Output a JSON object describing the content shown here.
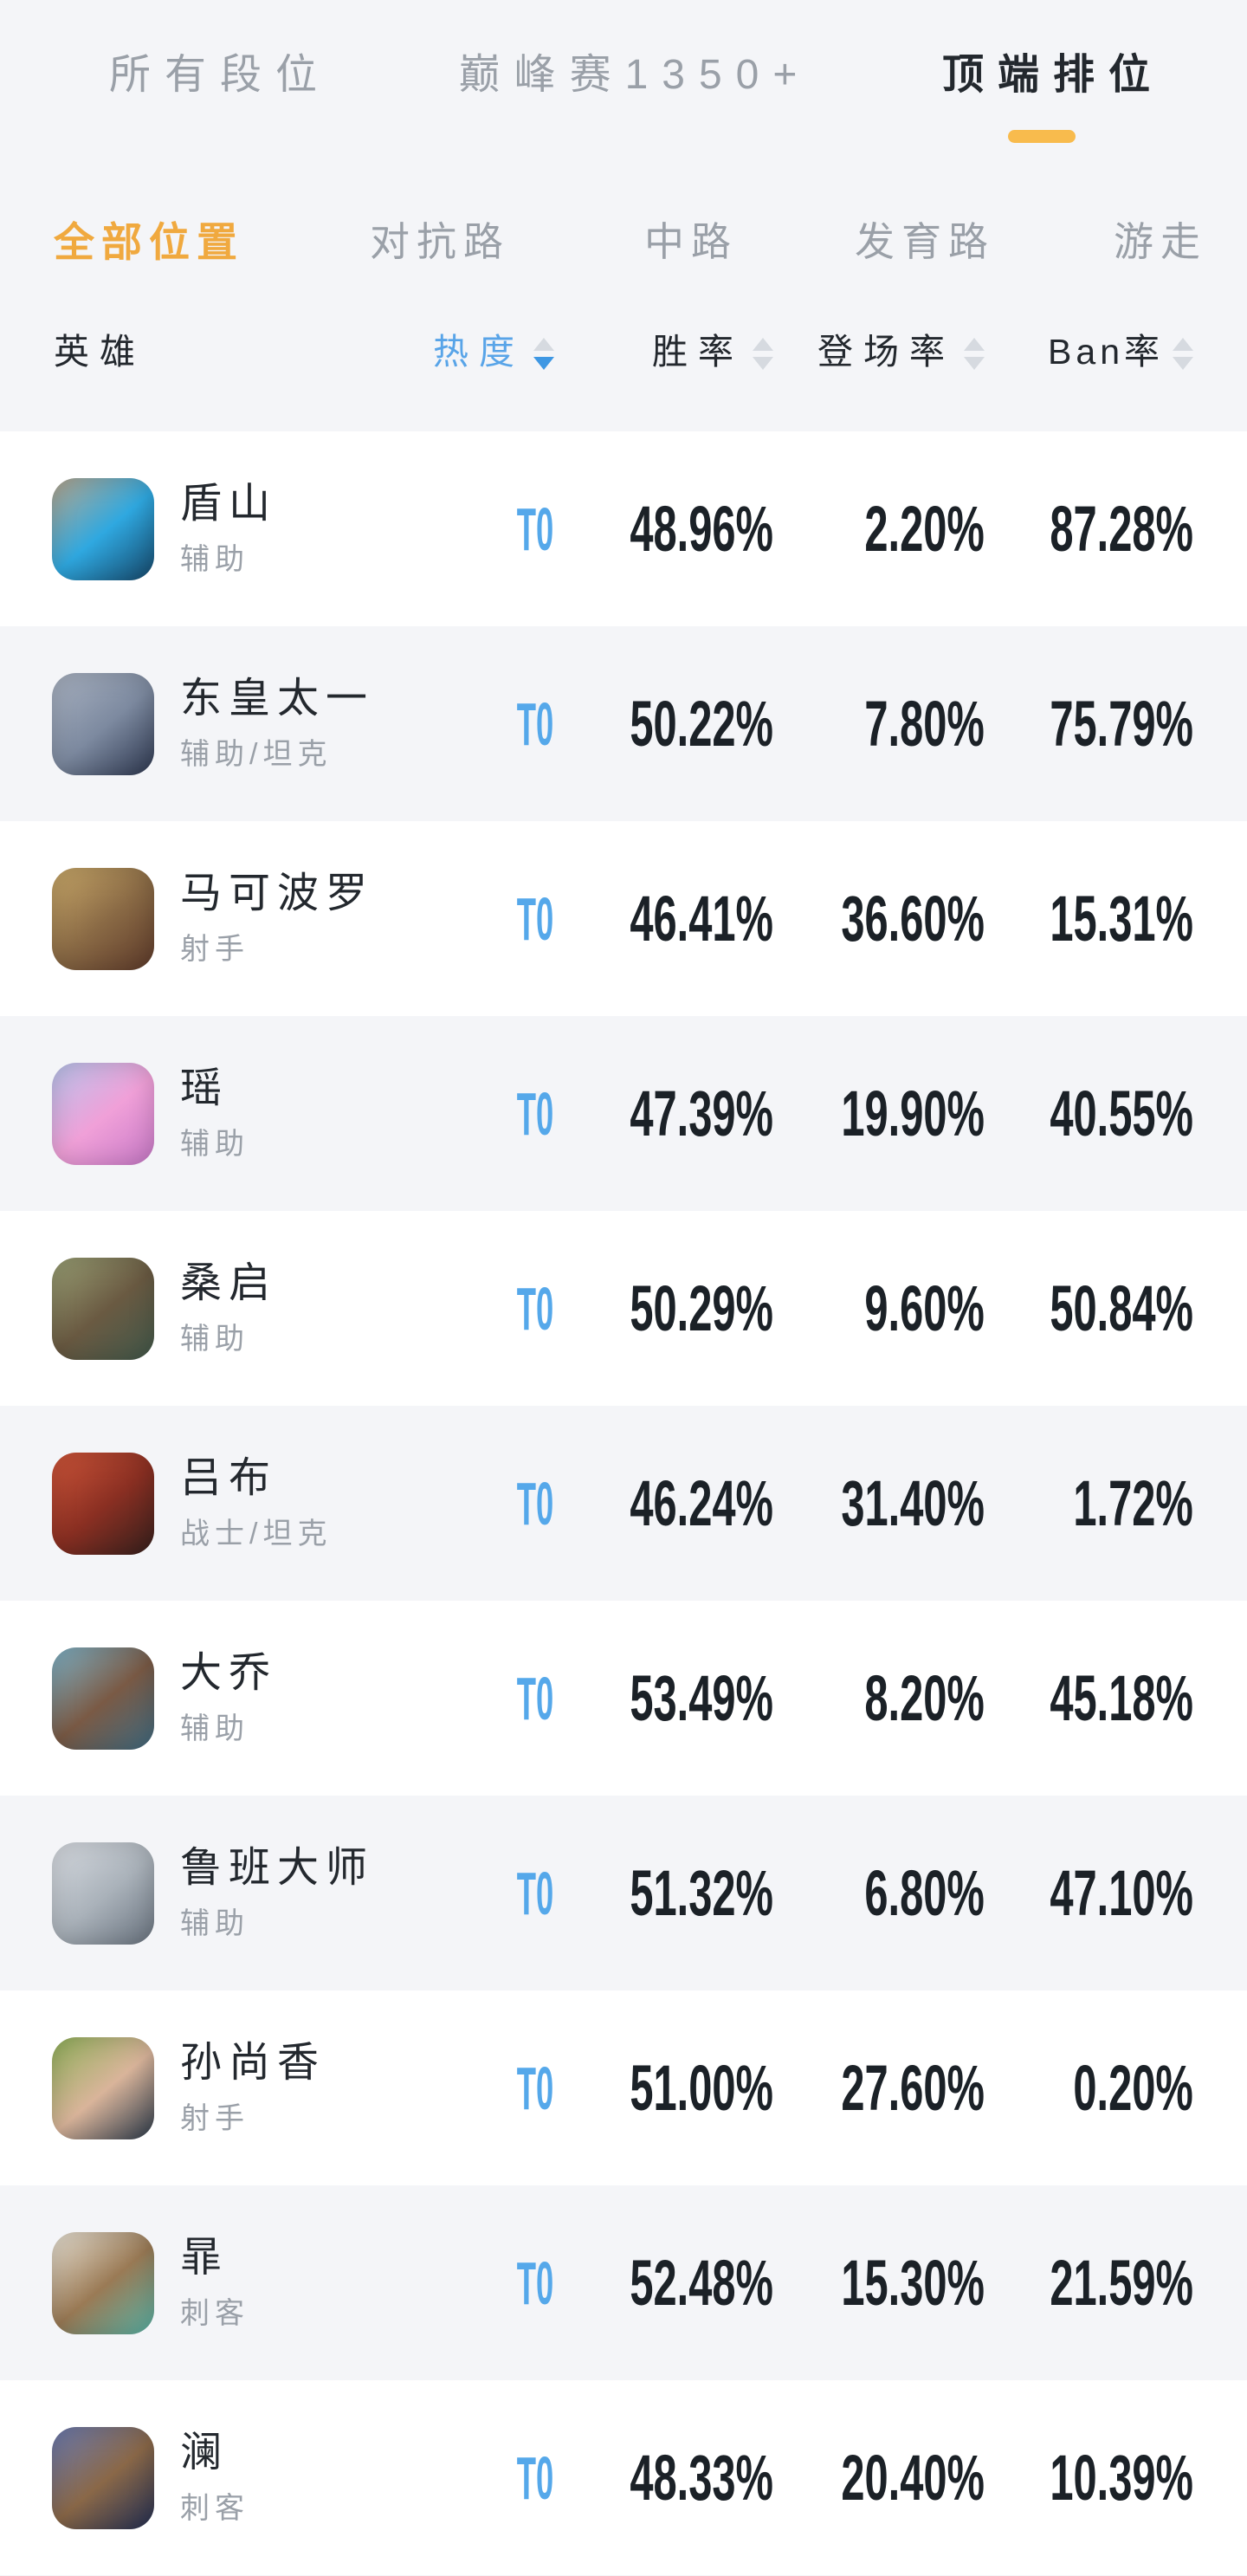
{
  "tabs": [
    {
      "label": "所有段位",
      "active": false
    },
    {
      "label": "巅峰赛1350+",
      "active": false
    },
    {
      "label": "顶端排位",
      "active": true
    }
  ],
  "filters": [
    {
      "label": "全部位置",
      "active": true
    },
    {
      "label": "对抗路",
      "active": false
    },
    {
      "label": "中路",
      "active": false
    },
    {
      "label": "发育路",
      "active": false
    },
    {
      "label": "游走",
      "active": false
    }
  ],
  "table_header": {
    "hero": "英雄",
    "heat": "热度",
    "win_rate": "胜率",
    "pick_rate": "登场率",
    "ban_rate": "Ban率",
    "heat_sort_state": "descending"
  },
  "rows": [
    {
      "name": "盾山",
      "role": "辅助",
      "tier": "T0",
      "win": "48.96%",
      "pick": "2.20%",
      "ban": "87.28%",
      "avatar_colors": [
        "#b9a78d",
        "#2fa8e0",
        "#16486b"
      ]
    },
    {
      "name": "东皇太一",
      "role": "辅助/坦克",
      "tier": "T0",
      "win": "50.22%",
      "pick": "7.80%",
      "ban": "75.79%",
      "avatar_colors": [
        "#aab3c2",
        "#7d8aa0",
        "#2e3850"
      ]
    },
    {
      "name": "马可波罗",
      "role": "射手",
      "tier": "T0",
      "win": "46.41%",
      "pick": "36.60%",
      "ban": "15.31%",
      "avatar_colors": [
        "#c9a96a",
        "#8a6a45",
        "#5d3a2a"
      ]
    },
    {
      "name": "瑶",
      "role": "辅助",
      "tier": "T0",
      "win": "47.39%",
      "pick": "19.90%",
      "ban": "40.55%",
      "avatar_colors": [
        "#b8c4ec",
        "#f0a0d8",
        "#c879c8"
      ]
    },
    {
      "name": "桑启",
      "role": "辅助",
      "tier": "T0",
      "win": "50.29%",
      "pick": "9.60%",
      "ban": "50.84%",
      "avatar_colors": [
        "#9aa075",
        "#6a5a42",
        "#41584a"
      ]
    },
    {
      "name": "吕布",
      "role": "战士/坦克",
      "tier": "T0",
      "win": "46.24%",
      "pick": "31.40%",
      "ban": "1.72%",
      "avatar_colors": [
        "#d0563a",
        "#8a2f22",
        "#35201d"
      ]
    },
    {
      "name": "大乔",
      "role": "辅助",
      "tier": "T0",
      "win": "53.49%",
      "pick": "8.20%",
      "ban": "45.18%",
      "avatar_colors": [
        "#7fb3c8",
        "#7a5a45",
        "#3f6a80"
      ]
    },
    {
      "name": "鲁班大师",
      "role": "辅助",
      "tier": "T0",
      "win": "51.32%",
      "pick": "6.80%",
      "ban": "47.10%",
      "avatar_colors": [
        "#d8dce2",
        "#aab2ba",
        "#6a7480"
      ]
    },
    {
      "name": "孙尚香",
      "role": "射手",
      "tier": "T0",
      "win": "51.00%",
      "pick": "27.60%",
      "ban": "0.20%",
      "avatar_colors": [
        "#8fb059",
        "#d9b49a",
        "#2c3a4a"
      ]
    },
    {
      "name": "暃",
      "role": "刺客",
      "tier": "T0",
      "win": "52.48%",
      "pick": "15.30%",
      "ban": "21.59%",
      "avatar_colors": [
        "#e9e3d6",
        "#9a7a55",
        "#58b2a6"
      ]
    },
    {
      "name": "澜",
      "role": "刺客",
      "tier": "T0",
      "win": "48.33%",
      "pick": "20.40%",
      "ban": "10.39%",
      "avatar_colors": [
        "#6a7ab0",
        "#8a6848",
        "#222e52"
      ]
    }
  ],
  "colors": {
    "accent_orange": "#f0a93f",
    "active_underline": "#f8bb4d",
    "heat_blue": "#58a4e8",
    "sort_active_blue": "#3e97e3",
    "sort_inactive_gray": "#d6dae0",
    "tier_blue": "#55a8ea",
    "value_dark": "#1b2127",
    "text_dark": "#23282e",
    "text_gray": "#9aa0a8",
    "row_alt_bg": "#f4f5f8",
    "row_bg": "#ffffff"
  }
}
